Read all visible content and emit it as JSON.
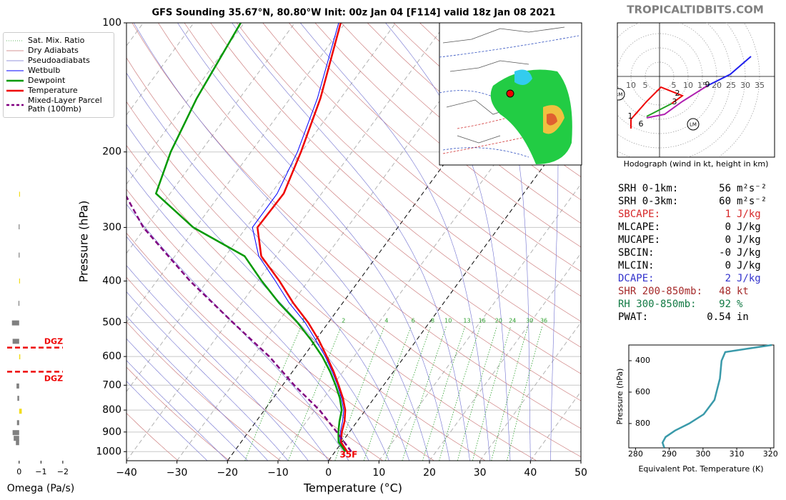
{
  "title": "GFS Sounding 35.67°N, 80.80°W Init: 00z Jan 04 [F114] valid 18z Jan 08 2021",
  "watermark": "TROPICALTIDBITS.COM",
  "chart_data": [
    {
      "type": "skewt",
      "xlabel": "Temperature (°C)",
      "ylabel": "Pressure (hPa)",
      "xlim": [
        -40,
        50
      ],
      "ylim": [
        1050,
        100
      ],
      "log_y": true,
      "grid": true,
      "xticks": [
        {
          "value": -40,
          "label": "−40"
        },
        {
          "value": -30,
          "label": "−30"
        },
        {
          "value": -20,
          "label": "−20"
        },
        {
          "value": -10,
          "label": "−10"
        },
        0,
        10,
        20,
        30,
        40,
        50
      ],
      "yticks": [
        100,
        200,
        300,
        400,
        500,
        600,
        700,
        800,
        900,
        1000
      ],
      "highlight_isotherms": [
        -20,
        0
      ],
      "background_lines": [
        {
          "name": "Sat. Mix. Ratio",
          "color": "#2ca02c",
          "style": "dotted",
          "values": [
            1,
            2,
            4,
            6,
            8,
            10,
            13,
            16,
            20,
            24,
            30,
            36
          ]
        },
        {
          "name": "Dry Adiabats",
          "color": "#c87070",
          "style": "solid"
        },
        {
          "name": "Pseudoadiabats",
          "color": "#7070d0",
          "style": "solid"
        }
      ],
      "series": [
        {
          "name": "Wetbulb",
          "color": "#0000ff",
          "style": "solid",
          "width": 1,
          "pressure": [
            1000,
            950,
            900,
            850,
            800,
            750,
            700,
            650,
            600,
            550,
            500,
            450,
            400,
            350,
            300,
            250,
            200,
            150,
            100
          ],
          "values": [
            2.2,
            -0.4,
            -1.8,
            -2.9,
            -4.3,
            -6.5,
            -9.1,
            -12.2,
            -15.7,
            -19.9,
            -24.6,
            -30.6,
            -36.5,
            -43.4,
            -48.8,
            -48.8,
            -50.8,
            -54.6,
            -61.3
          ]
        },
        {
          "name": "Dewpoint",
          "color": "#009900",
          "style": "solid",
          "width": 2.5,
          "pressure": [
            1000,
            950,
            900,
            850,
            800,
            750,
            700,
            650,
            600,
            550,
            500,
            450,
            400,
            350,
            300,
            250,
            200,
            150,
            100
          ],
          "values": [
            2.0,
            -0.7,
            -2.2,
            -3.5,
            -4.7,
            -6.8,
            -9.5,
            -12.6,
            -16.3,
            -20.8,
            -26.1,
            -32.6,
            -39.2,
            -46.2,
            -60.5,
            -72.8,
            -75.9,
            -78.5,
            -80.7
          ]
        },
        {
          "name": "Temperature",
          "color": "#ee0000",
          "style": "solid",
          "width": 2.5,
          "pressure": [
            1000,
            950,
            900,
            850,
            800,
            750,
            700,
            650,
            600,
            550,
            500,
            450,
            400,
            350,
            300,
            250,
            200,
            150,
            100
          ],
          "values": [
            2.4,
            -0.2,
            -1.5,
            -2.5,
            -4.0,
            -6.2,
            -8.9,
            -11.9,
            -15.4,
            -19.3,
            -24.0,
            -29.8,
            -35.7,
            -42.9,
            -47.8,
            -47.5,
            -50.1,
            -54.0,
            -60.9
          ]
        },
        {
          "name": "Mixed-Layer Parcel Path (100mb)",
          "color": "#800080",
          "style": "dashed",
          "width": 2.5,
          "pressure": [
            1000,
            900,
            800,
            700,
            600,
            500,
            400,
            300,
            250
          ],
          "values": [
            3.2,
            -2.5,
            -9.1,
            -17.7,
            -26.8,
            -38.9,
            -53.4,
            -70.4,
            -79.0
          ]
        }
      ],
      "annotations": [
        {
          "text": "35F",
          "color": "#ee0000"
        }
      ]
    },
    {
      "type": "bar",
      "orientation": "horizontal",
      "xlabel": "Omega (Pa/s)",
      "xlim": [
        0.55,
        -2.2
      ],
      "xticks": [
        0,
        {
          "value": -1,
          "label": "−1"
        },
        {
          "value": -2,
          "label": "−2"
        }
      ],
      "ylim": [
        1050,
        100
      ],
      "log_y": true,
      "pressure": [
        251,
        299,
        348,
        400,
        451,
        501,
        553,
        601,
        703,
        751,
        805,
        856,
        903,
        931,
        953
      ],
      "values": [
        -0.02,
        0.02,
        0.02,
        -0.03,
        0.03,
        0.33,
        0.3,
        -0.05,
        0.12,
        0.08,
        -0.12,
        0.1,
        0.3,
        0.25,
        0.15
      ],
      "colors": [
        "#f2dc1c",
        "#808080",
        "#808080",
        "#f2dc1c",
        "#808080",
        "#808080",
        "#808080",
        "#f2dc1c",
        "#808080",
        "#808080",
        "#f2dc1c",
        "#808080",
        "#808080",
        "#808080",
        "#808080"
      ],
      "dgz": {
        "pressure": [
          572,
          651
        ],
        "labels": [
          "DGZ",
          "DGZ"
        ],
        "color": "#ee0000"
      }
    },
    {
      "type": "hodograph",
      "caption": "Hodograph (wind in kt, height in km)",
      "xlim": [
        -14.75,
        40.25
      ],
      "ylim": [
        -28.25,
        18.75
      ],
      "xticks": [
        {
          "value": -10,
          "label": "10"
        },
        {
          "value": -5,
          "label": "5"
        },
        5,
        10,
        15,
        20,
        25,
        30,
        35
      ],
      "segments": [
        {
          "color": "#ee0000",
          "u": [
            -10,
            -10,
            -4.5,
            0.5,
            8,
            4.25
          ],
          "v": [
            -18.25,
            -15,
            -8.75,
            -3.75,
            -6.75,
            -9.5
          ]
        },
        {
          "color": "#22a022",
          "u": [
            4.25,
            -4.5
          ],
          "v": [
            -9.5,
            -14
          ]
        },
        {
          "color": "#b020b0",
          "u": [
            -4.5,
            1.75,
            8,
            16.75
          ],
          "v": [
            -14.5,
            -13.25,
            -8.75,
            -3.25
          ]
        },
        {
          "color": "#2020ee",
          "u": [
            16.75,
            24.75,
            32
          ],
          "v": [
            -3.25,
            0.75,
            7
          ]
        }
      ],
      "height_labels": {
        "heights": [
          1,
          2,
          3,
          6,
          9
        ],
        "u": [
          -10.25,
          6.25,
          5.25,
          -6.5,
          16.75
        ],
        "v": [
          -14,
          -6,
          -9,
          -16.75,
          -3
        ]
      },
      "storm_motion": {
        "labels": [
          "RM",
          "LM"
        ],
        "u": [
          -14.25,
          11.75
        ],
        "v": [
          -6.25,
          -16.75
        ]
      }
    },
    {
      "type": "line",
      "xlabel": "Equivalent Pot. Temperature (K)",
      "ylabel": "Pressure (hPa)",
      "xlim": [
        278,
        321
      ],
      "ylim": [
        955,
        300
      ],
      "xticks": [
        280,
        290,
        300,
        310,
        320
      ],
      "yticks": [
        400,
        600,
        800
      ],
      "color": "#3a9aaa",
      "pressure": [
        300,
        345,
        400,
        514,
        650,
        741,
        800,
        845,
        886,
        922,
        954
      ],
      "values": [
        320.4,
        306.6,
        305.5,
        305.0,
        303.4,
        300.2,
        295.9,
        291.7,
        288.9,
        288.0,
        288.5
      ]
    }
  ],
  "parameters": {
    "rows": [
      {
        "label": "SRH 0-1km:",
        "value": "56",
        "unit": "m²s⁻²",
        "color": "#000000"
      },
      {
        "label": "SRH 0-3km:",
        "value": "60",
        "unit": "m²s⁻²",
        "color": "#000000"
      },
      {
        "label": "SBCAPE:",
        "value": "1",
        "unit": "J/kg",
        "color": "#d62728"
      },
      {
        "label": "MLCAPE:",
        "value": "0",
        "unit": "J/kg",
        "color": "#000000"
      },
      {
        "label": "MUCAPE:",
        "value": "0",
        "unit": "J/kg",
        "color": "#000000"
      },
      {
        "label": "SBCIN:",
        "value": "-0",
        "unit": "J/kg",
        "color": "#000000"
      },
      {
        "label": "MLCIN:",
        "value": "0",
        "unit": "J/kg",
        "color": "#000000"
      },
      {
        "label": "DCAPE:",
        "value": "2",
        "unit": "J/kg",
        "color": "#3333cc"
      },
      {
        "label": "SHR 200-850mb:",
        "value": "48",
        "unit": "kt",
        "color": "#a52a2a"
      },
      {
        "label": "RH 300-850mb:",
        "value": "92",
        "unit": "%",
        "color": "#127a44"
      },
      {
        "label": "PWAT:",
        "value": "0.54",
        "unit": "in",
        "color": "#000000"
      }
    ]
  }
}
